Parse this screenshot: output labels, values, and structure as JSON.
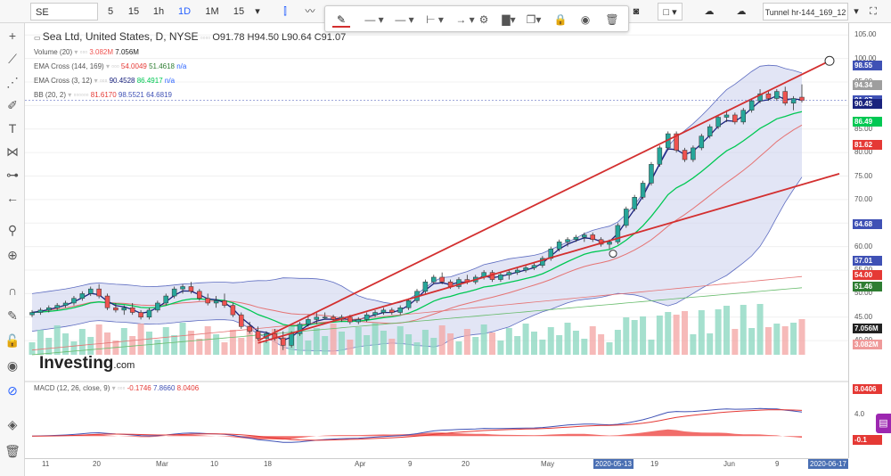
{
  "toolbar": {
    "symbol": "SE",
    "intervals": [
      "5",
      "15",
      "1h",
      "1D",
      "1M",
      "15"
    ],
    "active_interval": "1D",
    "template_name": "Tunnel hr-144_169_12"
  },
  "drawing_toolbar": {
    "icons": [
      "pencil-icon",
      "line-style-icon",
      "line-width-icon",
      "line-start-icon",
      "line-end-icon",
      "gear-icon",
      "fill-icon",
      "copy-icon",
      "lock-icon",
      "eye-icon",
      "trash-icon"
    ]
  },
  "left_toolbar": {
    "icons": [
      "crosshair-icon",
      "trend-line-icon",
      "fib-icon",
      "brush-icon",
      "text-icon",
      "pattern-icon",
      "measure-icon",
      "back-arrow-icon",
      "magic-icon",
      "zoom-icon",
      "magnet-icon",
      "pencil-lock-icon",
      "lock-icon",
      "eye-icon",
      "link-icon",
      "layers-icon",
      "trash-icon"
    ]
  },
  "main_legend": {
    "title": "Sea Ltd, United States, D, NYSE",
    "ohlc": "O91.78 H94.50 L90.64 C91.07",
    "volume": {
      "label": "Volume (20)",
      "v1": "3.082M",
      "v2": "7.056M"
    },
    "ema1": {
      "label": "EMA Cross (144, 169)",
      "v1": "54.0049",
      "v2": "51.4618",
      "v3": "n/a"
    },
    "ema2": {
      "label": "EMA Cross (3, 12)",
      "v1": "90.4528",
      "v2": "86.4917",
      "v3": "n/a"
    },
    "bb": {
      "label": "BB (20, 2)",
      "v1": "81.6170",
      "v2": "98.5521",
      "v3": "64.6819"
    }
  },
  "macd_legend": {
    "label": "MACD (12, 26, close, 9)",
    "v1": "-0.1746",
    "v2": "7.8660",
    "v3": "8.0406"
  },
  "watermark": {
    "brand": "Investing",
    "suffix": ".com"
  },
  "price_axis": {
    "ticks": [
      "105.00",
      "100.00",
      "95.00",
      "90.00",
      "85.00",
      "80.00",
      "75.00",
      "70.00",
      "65.00",
      "60.00",
      "55.00",
      "50.00",
      "45.00",
      "40.00"
    ],
    "tags": [
      {
        "text": "98.55",
        "color": "#3f51b5"
      },
      {
        "text": "94.34",
        "color": "#9e9e9e"
      },
      {
        "text": "91.07",
        "color": "#3f51b5"
      },
      {
        "text": "90.45",
        "color": "#1a237e"
      },
      {
        "text": "86.49",
        "color": "#00c853"
      },
      {
        "text": "81.62",
        "color": "#e53935"
      },
      {
        "text": "64.68",
        "color": "#3f51b5"
      },
      {
        "text": "57.01",
        "color": "#3f51b5"
      },
      {
        "text": "54.00",
        "color": "#e53935"
      },
      {
        "text": "51.46",
        "color": "#2e7d32"
      },
      {
        "text": "7.056M",
        "color": "#222222"
      },
      {
        "text": "3.082M",
        "color": "#ef9a9a"
      }
    ]
  },
  "macd_axis": {
    "ticks": [
      "4.0"
    ],
    "tags": [
      {
        "text": "8.0406",
        "color": "#e53935"
      },
      {
        "text": "-0.1",
        "color": "#e53935"
      }
    ]
  },
  "time_axis": {
    "ticks": [
      "11",
      "20",
      "Mar",
      "10",
      "18",
      "Apr",
      "9",
      "20",
      "May",
      "19",
      "Jun",
      "9"
    ],
    "tags": [
      "2020-05-13",
      "2020-06-17"
    ]
  },
  "colors": {
    "up": "#26a69a",
    "down": "#ef5350",
    "bb_fill": "#cfd4ef",
    "bb_line": "#5c6bc0",
    "ema3": "#1a237e",
    "ema12": "#00c853",
    "ema144": "#e57373",
    "ema169": "#66bb6a",
    "trend": "#d32f2f",
    "macd": "#3f51b5",
    "signal": "#e53935"
  },
  "chart_data": {
    "type": "candlestick",
    "symbol": "SE",
    "candles": [
      [
        45.5,
        46.5,
        45,
        46
      ],
      [
        46,
        47,
        45.5,
        46.5
      ],
      [
        46.5,
        47.5,
        46,
        47
      ],
      [
        47,
        48,
        46.5,
        47.5
      ],
      [
        47.5,
        48.5,
        47,
        48
      ],
      [
        48,
        49.5,
        47.5,
        49
      ],
      [
        49,
        50.5,
        48.5,
        50
      ],
      [
        50,
        51.5,
        49.5,
        51
      ],
      [
        51,
        52,
        49,
        49.5
      ],
      [
        49.5,
        50,
        46.5,
        47
      ],
      [
        47,
        48,
        46,
        46.5
      ],
      [
        46.5,
        47.5,
        45.5,
        47
      ],
      [
        47,
        48,
        45.5,
        46
      ],
      [
        46,
        46.5,
        44.5,
        45
      ],
      [
        45,
        47,
        44.5,
        46.5
      ],
      [
        46.5,
        48.5,
        46,
        48
      ],
      [
        48,
        50,
        47.5,
        49.5
      ],
      [
        49.5,
        51.5,
        49,
        51
      ],
      [
        51,
        52,
        50,
        51.5
      ],
      [
        51.5,
        52.5,
        50,
        50.5
      ],
      [
        50.5,
        51,
        48.5,
        49
      ],
      [
        49,
        50,
        47.5,
        48
      ],
      [
        48,
        49.5,
        47,
        48.5
      ],
      [
        48.5,
        50,
        47,
        47.5
      ],
      [
        47.5,
        48,
        45,
        45.5
      ],
      [
        45.5,
        46,
        42.5,
        43
      ],
      [
        43,
        44,
        41.5,
        42
      ],
      [
        42,
        43,
        40,
        40.5
      ],
      [
        40.5,
        42,
        39.5,
        41.5
      ],
      [
        41.5,
        42.5,
        40,
        40.5
      ],
      [
        40.5,
        42,
        38,
        39
      ],
      [
        39,
        42,
        38.5,
        41.5
      ],
      [
        41.5,
        44,
        41,
        43.5
      ],
      [
        43.5,
        45.5,
        43,
        44.5
      ],
      [
        44.5,
        46,
        43.5,
        45
      ],
      [
        45,
        46,
        44.5,
        45
      ],
      [
        45,
        45.5,
        44,
        44.5
      ],
      [
        44.5,
        45.5,
        44,
        45
      ],
      [
        45,
        45.5,
        43.5,
        44
      ],
      [
        44,
        45,
        43.5,
        44.5
      ],
      [
        44.5,
        46,
        44,
        45.5
      ],
      [
        45.5,
        46.5,
        45,
        46
      ],
      [
        46,
        47,
        45.5,
        46.5
      ],
      [
        46.5,
        47,
        45.5,
        46
      ],
      [
        46,
        47.5,
        45.5,
        47
      ],
      [
        47,
        49,
        46.5,
        48.5
      ],
      [
        48.5,
        51,
        48,
        50.5
      ],
      [
        50.5,
        53,
        50,
        52.5
      ],
      [
        52.5,
        54,
        52,
        53.5
      ],
      [
        53.5,
        54.5,
        52,
        52.5
      ],
      [
        52.5,
        53,
        51,
        51.5
      ],
      [
        51.5,
        53.5,
        51,
        53
      ],
      [
        53,
        54,
        52,
        52.5
      ],
      [
        52.5,
        54,
        52,
        53.5
      ],
      [
        53.5,
        55,
        53,
        54.5
      ],
      [
        54.5,
        55,
        52.5,
        53
      ],
      [
        53,
        54.5,
        52.5,
        54
      ],
      [
        54,
        55,
        53,
        54.5
      ],
      [
        54.5,
        55.5,
        54,
        55
      ],
      [
        55,
        56,
        54.5,
        55.5
      ],
      [
        55.5,
        56.5,
        55,
        56
      ],
      [
        56,
        58,
        55.5,
        57.5
      ],
      [
        57.5,
        60,
        57,
        59.5
      ],
      [
        59.5,
        61.5,
        59,
        61
      ],
      [
        61,
        62,
        60,
        61.5
      ],
      [
        61.5,
        62.5,
        61,
        62
      ],
      [
        62,
        63,
        61,
        62.5
      ],
      [
        62.5,
        63,
        61,
        61.5
      ],
      [
        61.5,
        62,
        60,
        60.5
      ],
      [
        60.5,
        61.5,
        59.5,
        61
      ],
      [
        61,
        65,
        60.5,
        64.5
      ],
      [
        64.5,
        68.5,
        64,
        68
      ],
      [
        68,
        71,
        67.5,
        70.5
      ],
      [
        70.5,
        74,
        70,
        73.5
      ],
      [
        73.5,
        78,
        73,
        77.5
      ],
      [
        77.5,
        81.5,
        77,
        81
      ],
      [
        81,
        84.5,
        80.5,
        84
      ],
      [
        84,
        84.5,
        80,
        80.5
      ],
      [
        80.5,
        81,
        78,
        78.5
      ],
      [
        78.5,
        81.5,
        78,
        81
      ],
      [
        81,
        84,
        80.5,
        83.5
      ],
      [
        83.5,
        86,
        83,
        85.5
      ],
      [
        85.5,
        88,
        85,
        87.5
      ],
      [
        87.5,
        89,
        86.5,
        88
      ],
      [
        88,
        88.5,
        86,
        86.5
      ],
      [
        86.5,
        89.5,
        86,
        89
      ],
      [
        89,
        91.5,
        88.5,
        91
      ],
      [
        91,
        93.5,
        90.5,
        92.5
      ],
      [
        92.5,
        93,
        91,
        91.5
      ],
      [
        91.5,
        93.5,
        91,
        93
      ],
      [
        93,
        94,
        90,
        90.5
      ],
      [
        90.5,
        92,
        89,
        91.5
      ],
      [
        91.78,
        94.5,
        90.64,
        91.07
      ]
    ],
    "volume": [
      "7.056M",
      "3.082M"
    ],
    "indicators": {
      "ema_144": 54.0049,
      "ema_169": 51.4618,
      "ema_3": 90.4528,
      "ema_12": 86.4917,
      "bb_mid": 81.617,
      "bb_upper": 98.5521,
      "bb_lower": 64.6819,
      "macd": -0.1746,
      "macd_line": 7.866,
      "macd_signal": 8.0406
    },
    "ylim": [
      37,
      106
    ]
  }
}
